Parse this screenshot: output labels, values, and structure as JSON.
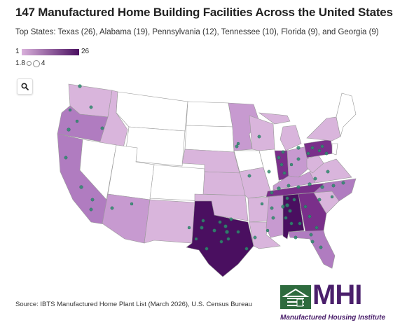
{
  "title": "147 Manufactured Home Building Facilities Across the United States",
  "subtitle": "Top States: Texas (26), Alabama (19), Pennsylvania (12), Tennessee (10), Florida (9), and Georgia (9)",
  "legend": {
    "color_min": "1",
    "color_max": "26",
    "size_min": "1.8",
    "size_max": "4",
    "color_low": "#d9b0db",
    "color_high": "#4a0f60"
  },
  "source": "Source: IBTS Manufactured Home Plant List (March 2026), U.S. Census Bureau",
  "logo": {
    "text": "MHI",
    "tagline": "Manufactured Housing Institute",
    "color": "#4a1f6b",
    "mark_color": "#2e6b3e"
  },
  "zoom_icon": "search-icon",
  "colors": {
    "no_data": "#ffffff",
    "light": "#d9b5dc",
    "mid_light": "#c79ad0",
    "mid": "#b07cc0",
    "dark": "#7a2f8a",
    "darkest": "#4a0f60",
    "dot": "#2e8b6f"
  }
}
